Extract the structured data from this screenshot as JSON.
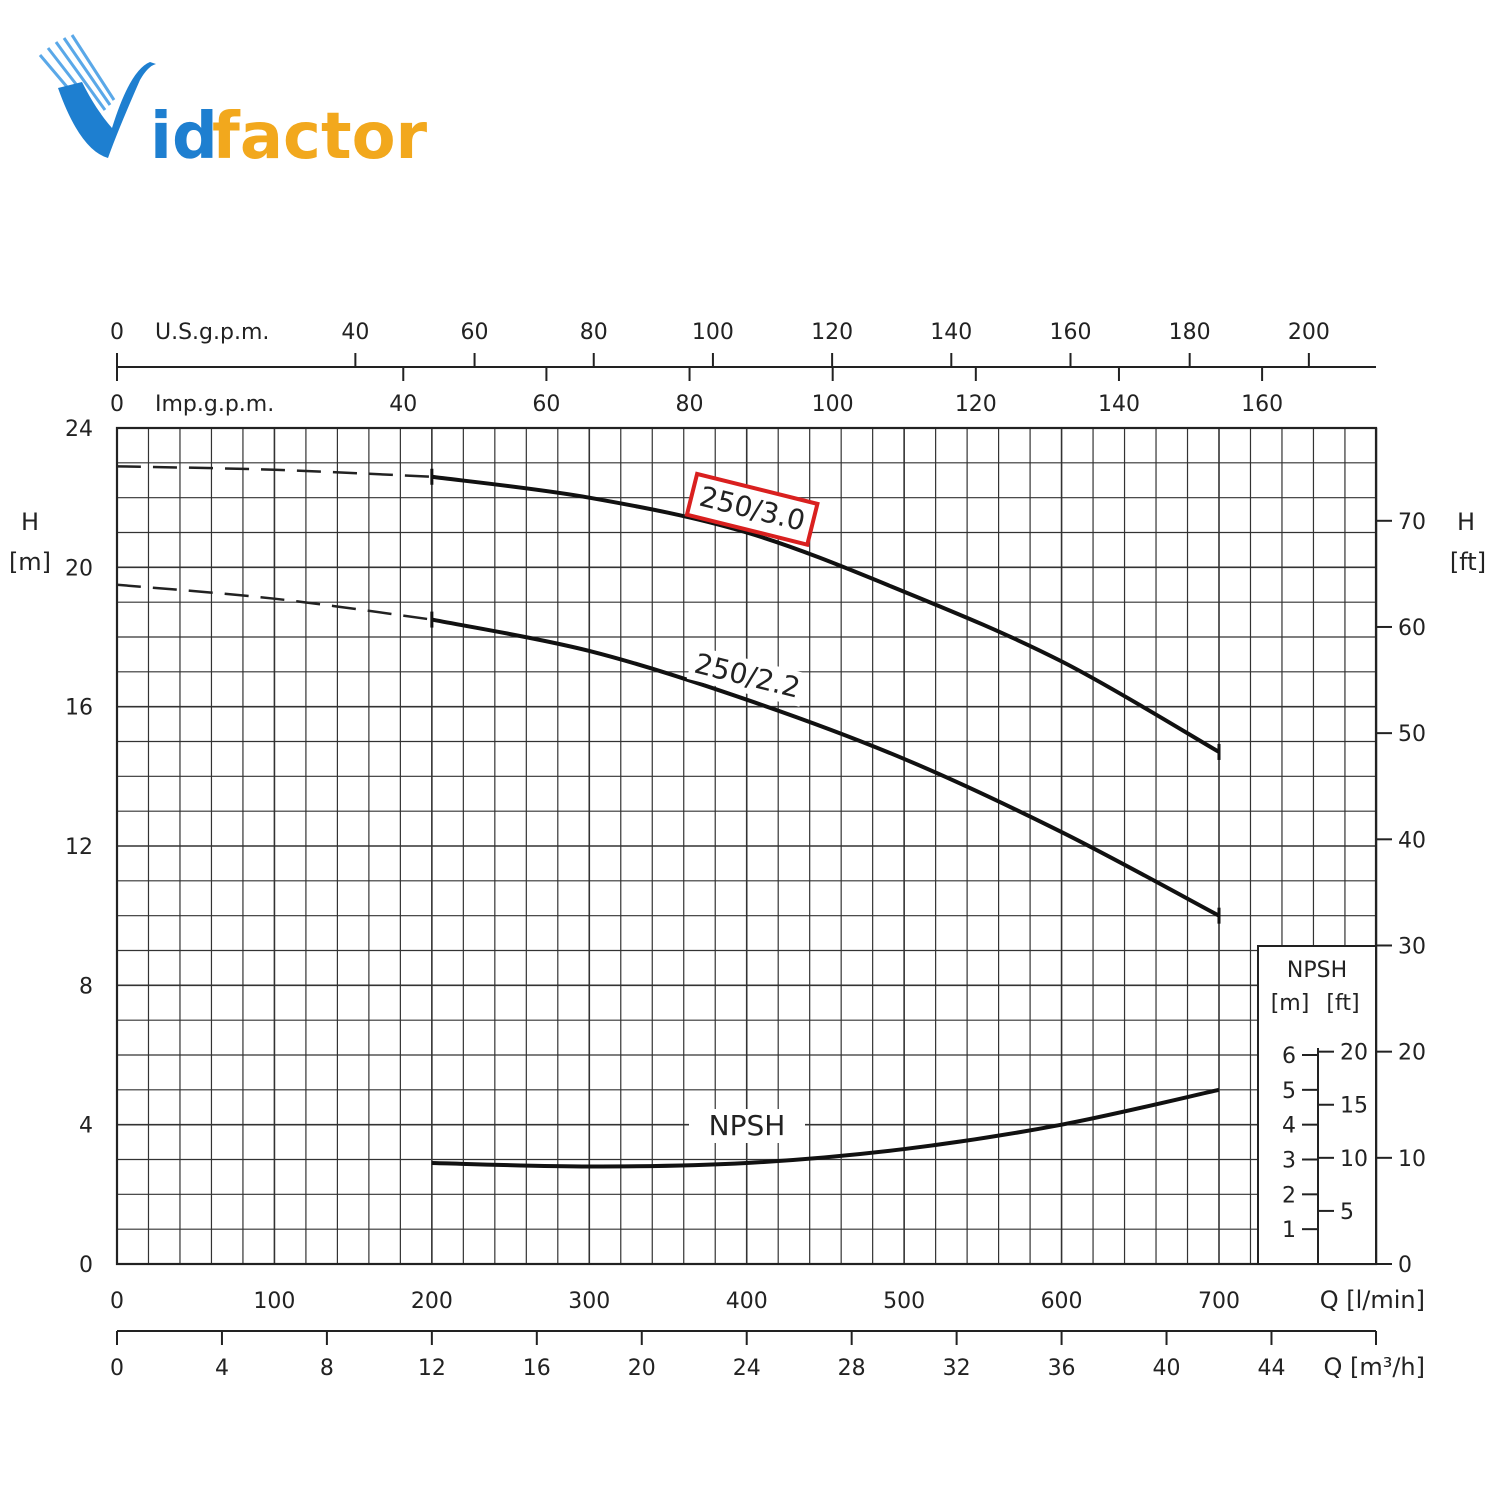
{
  "logo": {
    "text": "Vidfactor",
    "colors": {
      "v": "#1e7fd0",
      "id": "#1e7fd0",
      "factor": "#f2a81d"
    }
  },
  "chart_data": {
    "type": "line",
    "title": "",
    "xlabel": "Q [l/min]",
    "ylabel": "H [m]",
    "grid": true,
    "xlim": [
      0,
      800
    ],
    "ylim": [
      0,
      24
    ],
    "axes": {
      "left": {
        "label_top": "H",
        "label_bottom": "[m]",
        "ticks": [
          0,
          4,
          8,
          12,
          16,
          20,
          24
        ]
      },
      "right": {
        "label_top": "H",
        "label_bottom": "[ft]",
        "ticks": [
          0,
          10,
          20,
          30,
          40,
          50,
          60,
          70
        ]
      },
      "bottom": {
        "label": "Q [l/min]",
        "ticks": [
          0,
          100,
          200,
          300,
          400,
          500,
          600,
          700
        ]
      },
      "bottom2": {
        "label": "Q [m³/h]",
        "ticks": [
          0,
          4,
          8,
          12,
          16,
          20,
          24,
          28,
          32,
          36,
          40,
          44
        ]
      },
      "top": {
        "label": "U.S.g.p.m.",
        "ticks": [
          0,
          40,
          60,
          80,
          100,
          120,
          140,
          160,
          180,
          200
        ]
      },
      "top2": {
        "label": "Imp.g.p.m.",
        "ticks": [
          0,
          40,
          60,
          80,
          100,
          120,
          140,
          160
        ]
      }
    },
    "npsh_scale": {
      "title": "NPSH",
      "unit_m": "[m]",
      "unit_ft": "[ft]",
      "m_ticks": [
        1,
        2,
        3,
        4,
        5,
        6
      ],
      "ft_ticks": [
        5,
        10,
        15,
        20
      ]
    },
    "series": [
      {
        "name": "250/3.0",
        "highlight": "#d9201f",
        "dashed": [
          [
            0,
            22.9
          ],
          [
            100,
            22.8
          ],
          [
            200,
            22.6
          ]
        ],
        "points": [
          [
            200,
            22.6
          ],
          [
            300,
            22.0
          ],
          [
            400,
            21.0
          ],
          [
            500,
            19.3
          ],
          [
            600,
            17.3
          ],
          [
            700,
            14.7
          ]
        ]
      },
      {
        "name": "250/2.2",
        "dashed": [
          [
            0,
            19.5
          ],
          [
            100,
            19.1
          ],
          [
            200,
            18.5
          ]
        ],
        "points": [
          [
            200,
            18.5
          ],
          [
            300,
            17.6
          ],
          [
            400,
            16.2
          ],
          [
            500,
            14.5
          ],
          [
            600,
            12.4
          ],
          [
            700,
            10.0
          ]
        ]
      },
      {
        "name": "NPSH",
        "points": [
          [
            200,
            2.9
          ],
          [
            300,
            2.8
          ],
          [
            400,
            2.9
          ],
          [
            500,
            3.3
          ],
          [
            600,
            4.0
          ],
          [
            700,
            5.0
          ]
        ]
      }
    ]
  }
}
